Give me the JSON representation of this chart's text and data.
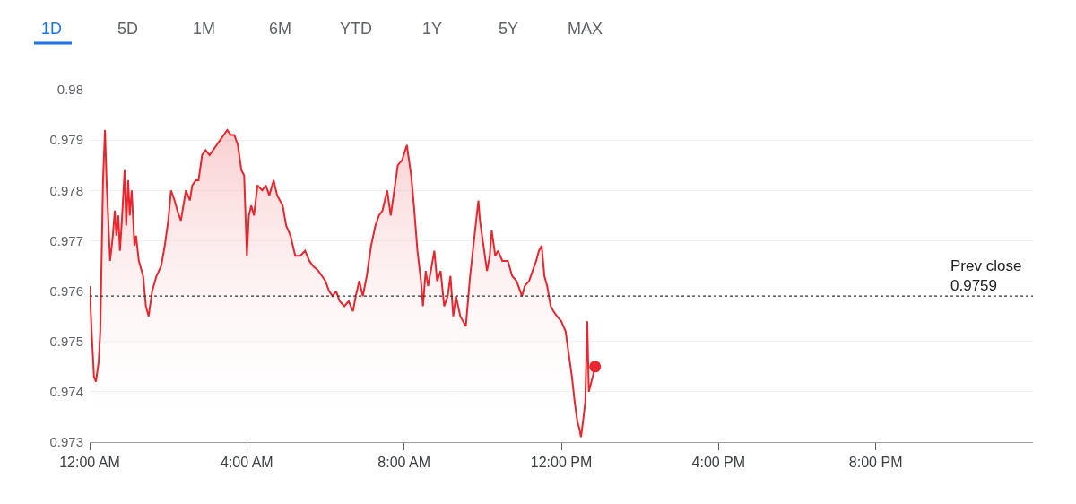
{
  "chart_data": {
    "type": "area",
    "annotations": [
      "1D",
      "5D",
      "1M",
      "6M",
      "YTD",
      "1Y",
      "5Y",
      "MAX"
    ],
    "x": [
      0.0,
      0.05,
      0.11,
      0.16,
      0.23,
      0.27,
      0.34,
      0.39,
      0.43,
      0.48,
      0.52,
      0.59,
      0.64,
      0.68,
      0.73,
      0.77,
      0.82,
      0.89,
      0.93,
      0.98,
      1.02,
      1.07,
      1.14,
      1.18,
      1.25,
      1.36,
      1.43,
      1.5,
      1.59,
      1.7,
      1.82,
      1.91,
      2.0,
      2.07,
      2.16,
      2.23,
      2.32,
      2.45,
      2.55,
      2.61,
      2.7,
      2.77,
      2.86,
      2.95,
      3.05,
      3.14,
      3.23,
      3.32,
      3.41,
      3.5,
      3.59,
      3.68,
      3.77,
      3.86,
      3.93,
      4.0,
      4.05,
      4.11,
      4.18,
      4.27,
      4.39,
      4.48,
      4.57,
      4.68,
      4.77,
      4.91,
      5.0,
      5.11,
      5.23,
      5.36,
      5.48,
      5.59,
      5.68,
      5.82,
      5.91,
      6.0,
      6.09,
      6.18,
      6.27,
      6.36,
      6.48,
      6.59,
      6.7,
      6.77,
      6.86,
      6.95,
      7.05,
      7.16,
      7.27,
      7.36,
      7.45,
      7.57,
      7.66,
      7.75,
      7.84,
      7.95,
      8.07,
      8.18,
      8.25,
      8.34,
      8.43,
      8.48,
      8.55,
      8.61,
      8.68,
      8.77,
      8.84,
      8.93,
      9.02,
      9.11,
      9.18,
      9.25,
      9.32,
      9.43,
      9.57,
      9.68,
      9.82,
      9.89,
      9.93,
      10.02,
      10.11,
      10.18,
      10.23,
      10.32,
      10.39,
      10.5,
      10.64,
      10.75,
      10.86,
      11.0,
      11.07,
      11.18,
      11.27,
      11.36,
      11.43,
      11.5,
      11.57,
      11.64,
      11.73,
      11.8,
      11.89,
      12.0,
      12.11,
      12.18,
      12.27,
      12.34,
      12.41,
      12.45,
      12.5,
      12.55,
      12.61,
      12.66,
      12.7,
      12.8,
      12.86
    ],
    "series": [
      {
        "color": "#e8262d",
        "values": [
          0.9761,
          0.9752,
          0.9743,
          0.9742,
          0.9746,
          0.9752,
          0.9782,
          0.9792,
          0.9782,
          0.9773,
          0.9766,
          0.9771,
          0.9776,
          0.9771,
          0.9775,
          0.9768,
          0.9774,
          0.9784,
          0.9773,
          0.9782,
          0.9775,
          0.978,
          0.9769,
          0.9771,
          0.9766,
          0.9763,
          0.9757,
          0.9755,
          0.976,
          0.9763,
          0.9765,
          0.9769,
          0.9774,
          0.978,
          0.9778,
          0.9776,
          0.9774,
          0.978,
          0.9778,
          0.9781,
          0.9782,
          0.9782,
          0.9787,
          0.9788,
          0.9787,
          0.9788,
          0.9789,
          0.979,
          0.9791,
          0.9792,
          0.9791,
          0.9791,
          0.9789,
          0.9784,
          0.9783,
          0.9767,
          0.9775,
          0.9777,
          0.9775,
          0.9781,
          0.978,
          0.9781,
          0.9779,
          0.9782,
          0.9779,
          0.9777,
          0.9773,
          0.9771,
          0.9767,
          0.9767,
          0.9768,
          0.9766,
          0.9765,
          0.9764,
          0.9763,
          0.9762,
          0.976,
          0.9759,
          0.976,
          0.9758,
          0.9757,
          0.9758,
          0.9756,
          0.9759,
          0.9762,
          0.9759,
          0.9763,
          0.9769,
          0.9773,
          0.9775,
          0.9776,
          0.978,
          0.9775,
          0.978,
          0.9785,
          0.9786,
          0.9789,
          0.9783,
          0.9777,
          0.9768,
          0.9762,
          0.9757,
          0.9764,
          0.9761,
          0.9764,
          0.9768,
          0.9762,
          0.9764,
          0.9757,
          0.9759,
          0.9763,
          0.9755,
          0.9759,
          0.9755,
          0.9753,
          0.9763,
          0.9773,
          0.9778,
          0.9774,
          0.9769,
          0.9764,
          0.9767,
          0.9772,
          0.9767,
          0.9768,
          0.9766,
          0.9766,
          0.9763,
          0.9762,
          0.9759,
          0.9761,
          0.9762,
          0.9764,
          0.9766,
          0.9768,
          0.9769,
          0.9763,
          0.9761,
          0.9757,
          0.9756,
          0.9755,
          0.9754,
          0.9752,
          0.9748,
          0.9743,
          0.9738,
          0.9734,
          0.9733,
          0.9731,
          0.9734,
          0.9738,
          0.9754,
          0.974,
          0.9743,
          0.9745
        ]
      },
      {
        "type": "scatter",
        "color": "#e8262d",
        "marker": "circle",
        "x": [
          12.86
        ],
        "values": [
          0.9745
        ]
      }
    ],
    "xlim": [
      0,
      24
    ],
    "xticks": [
      {
        "value": 0,
        "label": "12:00 AM"
      },
      {
        "value": 4,
        "label": "4:00 AM"
      },
      {
        "value": 8,
        "label": "8:00 AM"
      },
      {
        "value": 12,
        "label": "12:00 PM"
      },
      {
        "value": 16,
        "label": "4:00 PM"
      },
      {
        "value": 20,
        "label": "8:00 PM"
      }
    ],
    "ylim": [
      0.973,
      0.98
    ],
    "yticks": [
      0.973,
      0.974,
      0.975,
      0.976,
      0.977,
      0.978,
      0.979,
      0.98
    ],
    "ref_lines": [
      {
        "axis": "y",
        "value": 0.9759,
        "label": "Prev close\n0.9759",
        "color": "#333333",
        "line_style": "dotted"
      }
    ],
    "grid": "y"
  }
}
